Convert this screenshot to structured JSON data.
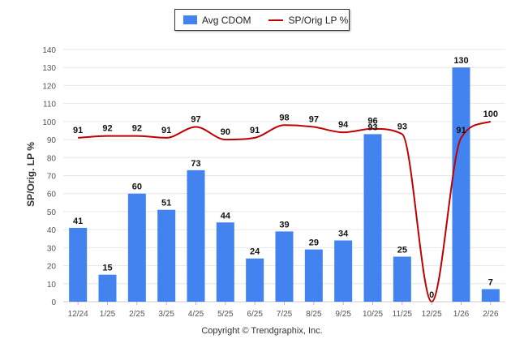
{
  "legend": {
    "bar_label": "Avg CDOM",
    "line_label": "SP/Orig LP %"
  },
  "copyright": "Copyright © Trendgraphix, Inc.",
  "colors": {
    "bar": "#4283f0",
    "line": "#c00000",
    "grid": "#e6e6e6",
    "axis": "#555555"
  },
  "chart_data": {
    "type": "bar",
    "title": "",
    "xlabel": "",
    "ylabel": "SP/Orig. LP %",
    "ylim": [
      0,
      140
    ],
    "yticks": [
      0,
      10,
      20,
      30,
      40,
      50,
      60,
      70,
      80,
      90,
      100,
      110,
      120,
      130,
      140
    ],
    "categories": [
      "12/24",
      "1/25",
      "2/25",
      "3/25",
      "4/25",
      "5/25",
      "6/25",
      "7/25",
      "8/25",
      "9/25",
      "10/25",
      "11/25",
      "12/25",
      "1/26",
      "2/26"
    ],
    "series": [
      {
        "name": "Avg CDOM",
        "kind": "bar",
        "values": [
          41,
          15,
          60,
          51,
          73,
          44,
          24,
          39,
          29,
          34,
          93,
          25,
          0,
          130,
          7
        ]
      },
      {
        "name": "SP/Orig LP %",
        "kind": "line",
        "values": [
          91,
          92,
          92,
          91,
          97,
          90,
          91,
          98,
          97,
          94,
          96,
          93,
          0,
          91,
          100
        ]
      }
    ]
  }
}
